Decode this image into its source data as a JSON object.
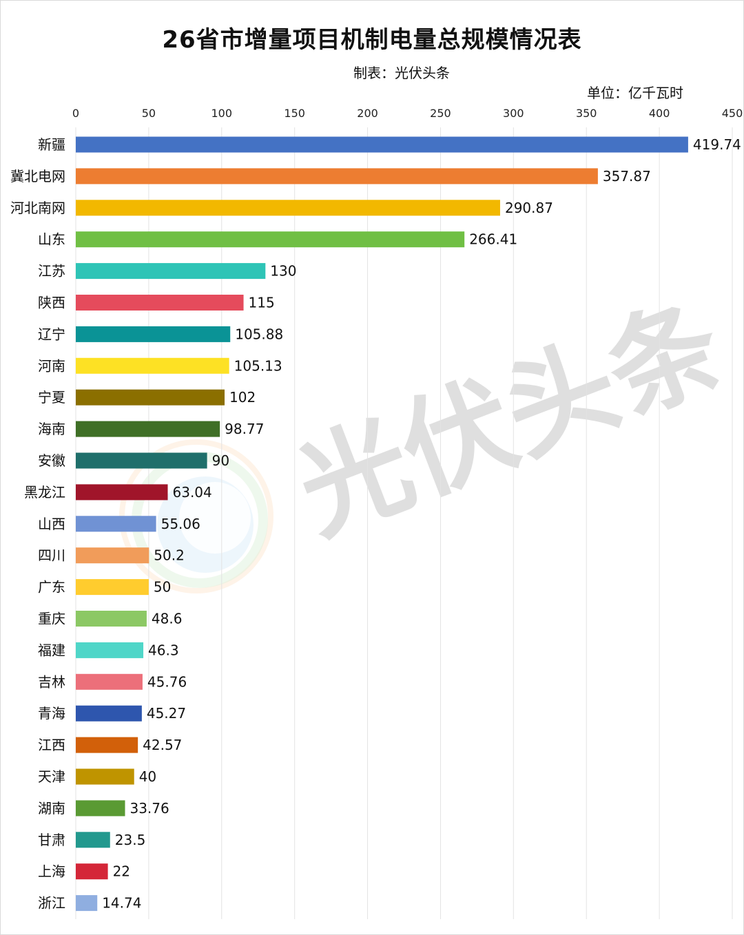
{
  "title": "26省市增量项目机制电量总规模情况表",
  "maker": "制表：光伏头条",
  "unit": "单位：亿千瓦时",
  "watermark": "光伏头条",
  "chart_data": {
    "type": "bar",
    "orientation": "horizontal",
    "title": "26省市增量项目机制电量总规模情况表",
    "xlabel": "",
    "ylabel": "",
    "xlim": [
      0,
      450
    ],
    "ticks": [
      0,
      50,
      100,
      150,
      200,
      250,
      300,
      350,
      400,
      450
    ],
    "grid": true,
    "legend": "none",
    "categories": [
      "新疆",
      "冀北电网",
      "河北南网",
      "山东",
      "江苏",
      "陕西",
      "辽宁",
      "河南",
      "宁夏",
      "海南",
      "安徽",
      "黑龙江",
      "山西",
      "四川",
      "广东",
      "重庆",
      "福建",
      "吉林",
      "青海",
      "江西",
      "天津",
      "湖南",
      "甘肃",
      "上海",
      "浙江"
    ],
    "values": [
      419.74,
      357.87,
      290.87,
      266.41,
      130,
      115,
      105.88,
      105.13,
      102,
      98.77,
      90,
      63.04,
      55.06,
      50.2,
      50,
      48.6,
      46.3,
      45.76,
      45.27,
      42.57,
      40,
      33.76,
      23.5,
      22,
      14.74
    ],
    "labels": [
      "419.74",
      "357.87",
      "290.87",
      "266.41",
      "130",
      "115",
      "105.88",
      "105.13",
      "102",
      "98.77",
      "90",
      "63.04",
      "55.06",
      "50.2",
      "50",
      "48.6",
      "46.3",
      "45.76",
      "45.27",
      "42.57",
      "40",
      "33.76",
      "23.5",
      "22",
      "14.74"
    ],
    "colors": [
      "#4472C4",
      "#ED7D31",
      "#F2B800",
      "#70BF44",
      "#2EC4B6",
      "#E54B5C",
      "#0A9396",
      "#FDE124",
      "#8B6F00",
      "#3F6F26",
      "#1F6F6B",
      "#A0152A",
      "#7092D4",
      "#F19C5A",
      "#FFCC2E",
      "#8CC864",
      "#4FD6C8",
      "#EC6F7A",
      "#2E56AE",
      "#D2600A",
      "#BF9400",
      "#5A9A33",
      "#23998E",
      "#D42638",
      "#8FAEE0"
    ]
  }
}
